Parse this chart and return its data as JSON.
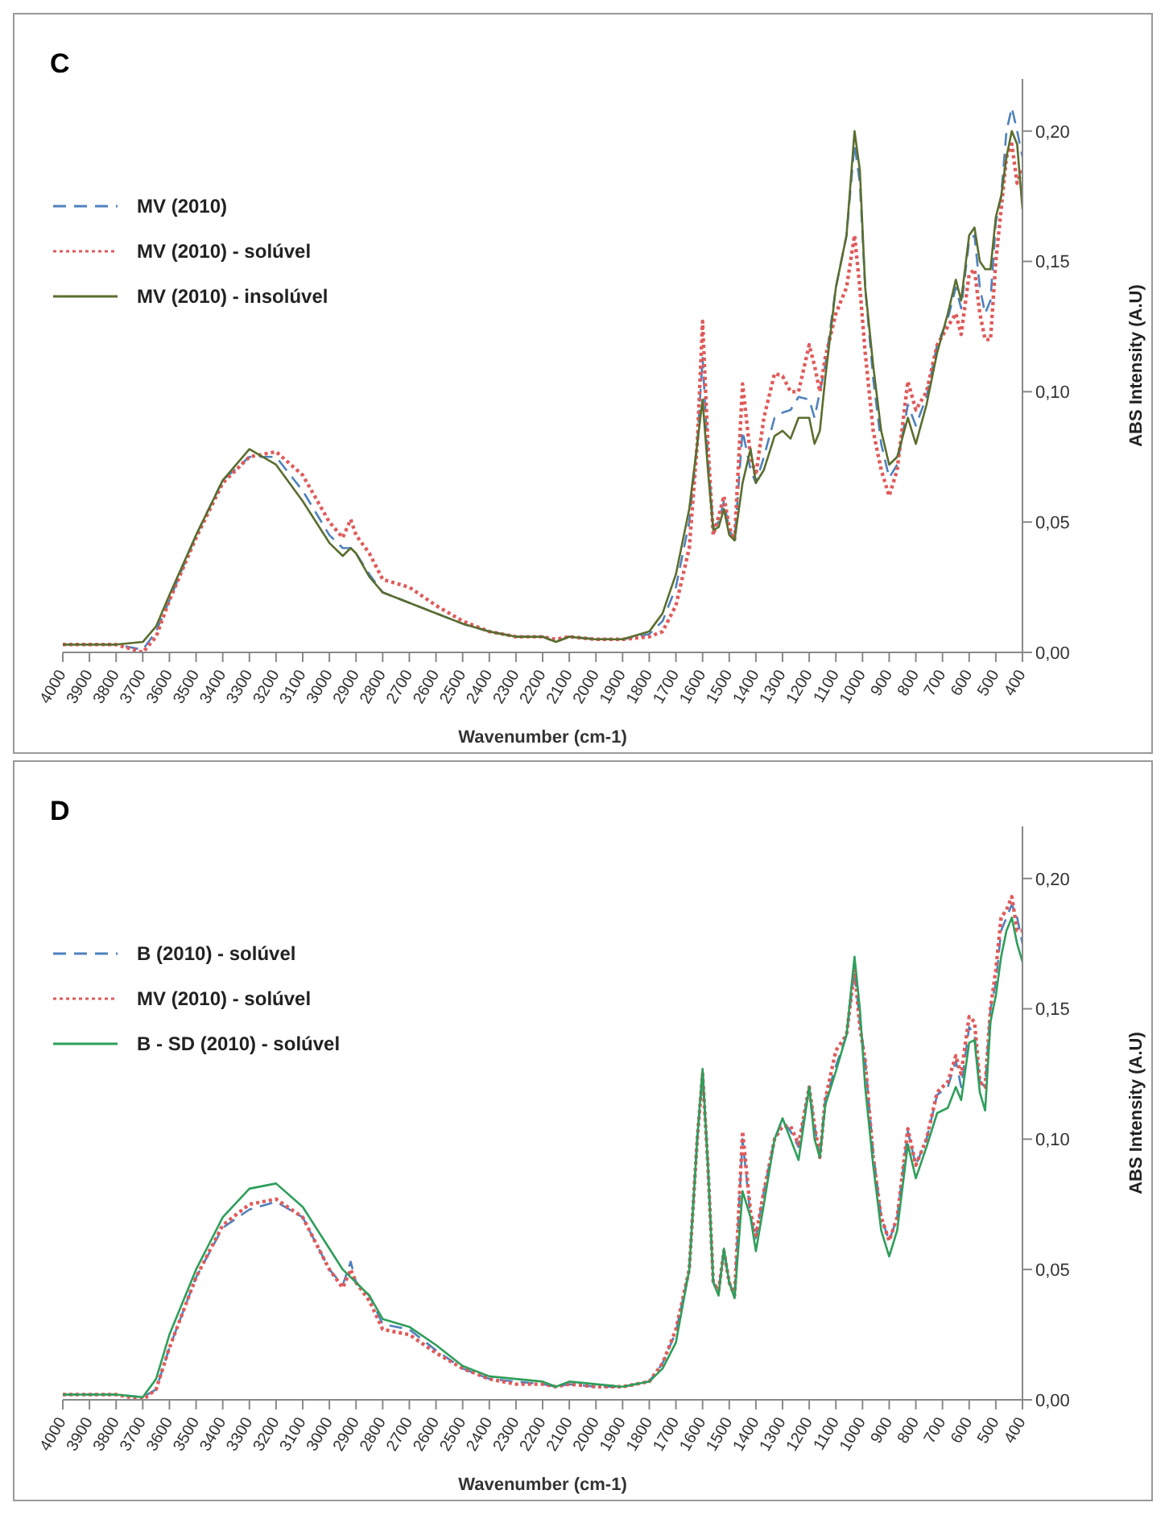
{
  "chart_data": [
    {
      "type": "line",
      "title": "C",
      "xlabel": "Wavenumber (cm-1)",
      "ylabel": "ABS Intensity (A.U)",
      "legend": "top left",
      "marker": "none",
      "xlim": [
        4000,
        400
      ],
      "xticks": [
        4000,
        3900,
        3800,
        3700,
        3600,
        3500,
        3400,
        3300,
        3200,
        3100,
        3000,
        2900,
        2800,
        2700,
        2600,
        2500,
        2400,
        2300,
        2200,
        2100,
        2000,
        1900,
        1800,
        1700,
        1600,
        1500,
        1400,
        1300,
        1200,
        1100,
        1000,
        900,
        800,
        700,
        600,
        500,
        400
      ],
      "ylim": [
        0,
        0.22
      ],
      "yticks": [
        {
          "value": 0,
          "label": "0,00"
        },
        {
          "value": 0.05,
          "label": "0,05"
        },
        {
          "value": 0.1,
          "label": "0,10"
        },
        {
          "value": 0.15,
          "label": "0,15"
        },
        {
          "value": 0.2,
          "label": "0,20"
        }
      ],
      "x": [
        4000,
        3800,
        3700,
        3650,
        3600,
        3500,
        3400,
        3300,
        3200,
        3100,
        3000,
        2950,
        2920,
        2900,
        2850,
        2800,
        2700,
        2600,
        2500,
        2400,
        2300,
        2200,
        2150,
        2100,
        2000,
        1900,
        1800,
        1750,
        1700,
        1650,
        1620,
        1600,
        1580,
        1560,
        1540,
        1520,
        1500,
        1480,
        1450,
        1420,
        1400,
        1370,
        1330,
        1300,
        1270,
        1240,
        1200,
        1180,
        1160,
        1140,
        1100,
        1060,
        1030,
        1010,
        990,
        960,
        930,
        900,
        870,
        830,
        800,
        760,
        720,
        680,
        650,
        630,
        600,
        580,
        560,
        540,
        520,
        500,
        480,
        460,
        440,
        420,
        400
      ],
      "series": [
        {
          "name": "MV (2010)",
          "color": "#4f81bd",
          "line_style": "dashed",
          "values": [
            0.003,
            0.003,
            0.001,
            0.008,
            0.02,
            0.045,
            0.066,
            0.075,
            0.075,
            0.062,
            0.045,
            0.04,
            0.04,
            0.038,
            0.03,
            0.023,
            0.019,
            0.015,
            0.011,
            0.008,
            0.006,
            0.006,
            0.004,
            0.006,
            0.005,
            0.005,
            0.007,
            0.012,
            0.025,
            0.05,
            0.08,
            0.113,
            0.075,
            0.048,
            0.05,
            0.058,
            0.047,
            0.043,
            0.085,
            0.07,
            0.065,
            0.075,
            0.09,
            0.092,
            0.093,
            0.098,
            0.097,
            0.09,
            0.1,
            0.11,
            0.14,
            0.16,
            0.195,
            0.18,
            0.14,
            0.105,
            0.08,
            0.067,
            0.072,
            0.095,
            0.087,
            0.098,
            0.118,
            0.128,
            0.14,
            0.132,
            0.158,
            0.16,
            0.14,
            0.13,
            0.135,
            0.165,
            0.175,
            0.2,
            0.209,
            0.2,
            0.19
          ]
        },
        {
          "name": "MV (2010) - solúvel",
          "color": "#e05a5a",
          "line_style": "dotted",
          "values": [
            0.003,
            0.003,
            0.0,
            0.006,
            0.02,
            0.044,
            0.065,
            0.075,
            0.077,
            0.068,
            0.05,
            0.044,
            0.051,
            0.045,
            0.038,
            0.028,
            0.025,
            0.018,
            0.012,
            0.008,
            0.006,
            0.006,
            0.005,
            0.006,
            0.005,
            0.005,
            0.006,
            0.008,
            0.018,
            0.04,
            0.08,
            0.127,
            0.08,
            0.045,
            0.052,
            0.06,
            0.048,
            0.043,
            0.103,
            0.075,
            0.068,
            0.09,
            0.107,
            0.106,
            0.1,
            0.1,
            0.118,
            0.11,
            0.1,
            0.113,
            0.13,
            0.14,
            0.16,
            0.14,
            0.115,
            0.085,
            0.07,
            0.06,
            0.07,
            0.104,
            0.093,
            0.1,
            0.118,
            0.125,
            0.13,
            0.122,
            0.145,
            0.147,
            0.13,
            0.12,
            0.12,
            0.15,
            0.17,
            0.19,
            0.195,
            0.18,
            0.185
          ]
        },
        {
          "name": "MV (2010) - insolúvel",
          "color": "#5a6e2e",
          "line_style": "solid",
          "values": [
            0.003,
            0.003,
            0.004,
            0.01,
            0.022,
            0.045,
            0.066,
            0.078,
            0.072,
            0.058,
            0.042,
            0.037,
            0.04,
            0.038,
            0.029,
            0.023,
            0.019,
            0.015,
            0.011,
            0.008,
            0.006,
            0.006,
            0.004,
            0.006,
            0.005,
            0.005,
            0.008,
            0.015,
            0.03,
            0.055,
            0.08,
            0.097,
            0.07,
            0.047,
            0.048,
            0.055,
            0.045,
            0.043,
            0.065,
            0.078,
            0.065,
            0.07,
            0.083,
            0.085,
            0.082,
            0.09,
            0.09,
            0.08,
            0.085,
            0.105,
            0.14,
            0.16,
            0.2,
            0.185,
            0.14,
            0.11,
            0.085,
            0.072,
            0.075,
            0.09,
            0.08,
            0.095,
            0.115,
            0.13,
            0.143,
            0.135,
            0.16,
            0.163,
            0.15,
            0.147,
            0.147,
            0.167,
            0.175,
            0.19,
            0.2,
            0.195,
            0.17
          ]
        }
      ]
    },
    {
      "type": "line",
      "title": "D",
      "xlabel": "Wavenumber (cm-1)",
      "ylabel": "ABS Intensity (A.U)",
      "legend": "top left",
      "marker": "none",
      "xlim": [
        4000,
        400
      ],
      "xticks": [
        4000,
        3900,
        3800,
        3700,
        3600,
        3500,
        3400,
        3300,
        3200,
        3100,
        3000,
        2900,
        2800,
        2700,
        2600,
        2500,
        2400,
        2300,
        2200,
        2100,
        2000,
        1900,
        1800,
        1700,
        1600,
        1500,
        1400,
        1300,
        1200,
        1100,
        1000,
        900,
        800,
        700,
        600,
        500,
        400
      ],
      "ylim": [
        0,
        0.22
      ],
      "yticks": [
        {
          "value": 0,
          "label": "0,00"
        },
        {
          "value": 0.05,
          "label": "0,05"
        },
        {
          "value": 0.1,
          "label": "0,10"
        },
        {
          "value": 0.15,
          "label": "0,15"
        },
        {
          "value": 0.2,
          "label": "0,20"
        }
      ],
      "x": [
        4000,
        3800,
        3700,
        3650,
        3600,
        3500,
        3400,
        3300,
        3200,
        3100,
        3000,
        2950,
        2920,
        2900,
        2850,
        2800,
        2700,
        2600,
        2500,
        2400,
        2300,
        2200,
        2150,
        2100,
        2000,
        1900,
        1800,
        1750,
        1700,
        1650,
        1620,
        1600,
        1580,
        1560,
        1540,
        1520,
        1500,
        1480,
        1450,
        1420,
        1400,
        1370,
        1330,
        1300,
        1270,
        1240,
        1200,
        1180,
        1160,
        1140,
        1100,
        1060,
        1030,
        1010,
        990,
        960,
        930,
        900,
        870,
        830,
        800,
        760,
        720,
        680,
        650,
        630,
        600,
        580,
        560,
        540,
        520,
        500,
        480,
        460,
        440,
        420,
        400
      ],
      "series": [
        {
          "name": "B (2010) - solúvel",
          "color": "#4f81bd",
          "line_style": "dashed",
          "values": [
            0.002,
            0.002,
            0.001,
            0.004,
            0.02,
            0.047,
            0.066,
            0.073,
            0.076,
            0.07,
            0.05,
            0.044,
            0.053,
            0.045,
            0.04,
            0.029,
            0.027,
            0.019,
            0.012,
            0.008,
            0.007,
            0.006,
            0.005,
            0.006,
            0.005,
            0.005,
            0.007,
            0.014,
            0.026,
            0.05,
            0.1,
            0.125,
            0.09,
            0.045,
            0.042,
            0.057,
            0.045,
            0.04,
            0.1,
            0.07,
            0.062,
            0.08,
            0.1,
            0.107,
            0.103,
            0.097,
            0.12,
            0.105,
            0.093,
            0.115,
            0.128,
            0.14,
            0.165,
            0.145,
            0.13,
            0.095,
            0.07,
            0.061,
            0.07,
            0.103,
            0.09,
            0.1,
            0.117,
            0.12,
            0.13,
            0.12,
            0.143,
            0.14,
            0.122,
            0.12,
            0.15,
            0.16,
            0.18,
            0.185,
            0.19,
            0.185,
            0.175
          ]
        },
        {
          "name": "MV (2010) - solúvel",
          "color": "#e05a5a",
          "line_style": "dotted",
          "values": [
            0.002,
            0.002,
            0.0,
            0.004,
            0.02,
            0.047,
            0.067,
            0.075,
            0.077,
            0.07,
            0.05,
            0.043,
            0.05,
            0.045,
            0.038,
            0.027,
            0.025,
            0.018,
            0.012,
            0.008,
            0.006,
            0.006,
            0.005,
            0.006,
            0.005,
            0.005,
            0.007,
            0.014,
            0.027,
            0.05,
            0.1,
            0.125,
            0.09,
            0.045,
            0.042,
            0.057,
            0.045,
            0.04,
            0.103,
            0.072,
            0.063,
            0.08,
            0.1,
            0.105,
            0.105,
            0.098,
            0.12,
            0.105,
            0.093,
            0.115,
            0.134,
            0.14,
            0.165,
            0.143,
            0.13,
            0.093,
            0.07,
            0.061,
            0.07,
            0.104,
            0.09,
            0.1,
            0.118,
            0.122,
            0.132,
            0.125,
            0.147,
            0.145,
            0.122,
            0.12,
            0.15,
            0.165,
            0.185,
            0.188,
            0.193,
            0.18,
            0.18
          ]
        },
        {
          "name": "B - SD (2010) - solúvel",
          "color": "#2e9e5a",
          "line_style": "solid",
          "values": [
            0.002,
            0.002,
            0.001,
            0.008,
            0.025,
            0.05,
            0.07,
            0.081,
            0.083,
            0.074,
            0.058,
            0.05,
            0.047,
            0.045,
            0.04,
            0.031,
            0.028,
            0.021,
            0.013,
            0.009,
            0.008,
            0.007,
            0.005,
            0.007,
            0.006,
            0.005,
            0.007,
            0.012,
            0.022,
            0.05,
            0.1,
            0.127,
            0.09,
            0.045,
            0.04,
            0.058,
            0.045,
            0.039,
            0.08,
            0.07,
            0.057,
            0.075,
            0.1,
            0.108,
            0.1,
            0.092,
            0.12,
            0.1,
            0.093,
            0.113,
            0.126,
            0.14,
            0.17,
            0.15,
            0.12,
            0.09,
            0.065,
            0.055,
            0.065,
            0.098,
            0.085,
            0.097,
            0.11,
            0.112,
            0.12,
            0.115,
            0.137,
            0.138,
            0.118,
            0.111,
            0.145,
            0.155,
            0.17,
            0.18,
            0.185,
            0.175,
            0.168
          ]
        }
      ]
    }
  ]
}
